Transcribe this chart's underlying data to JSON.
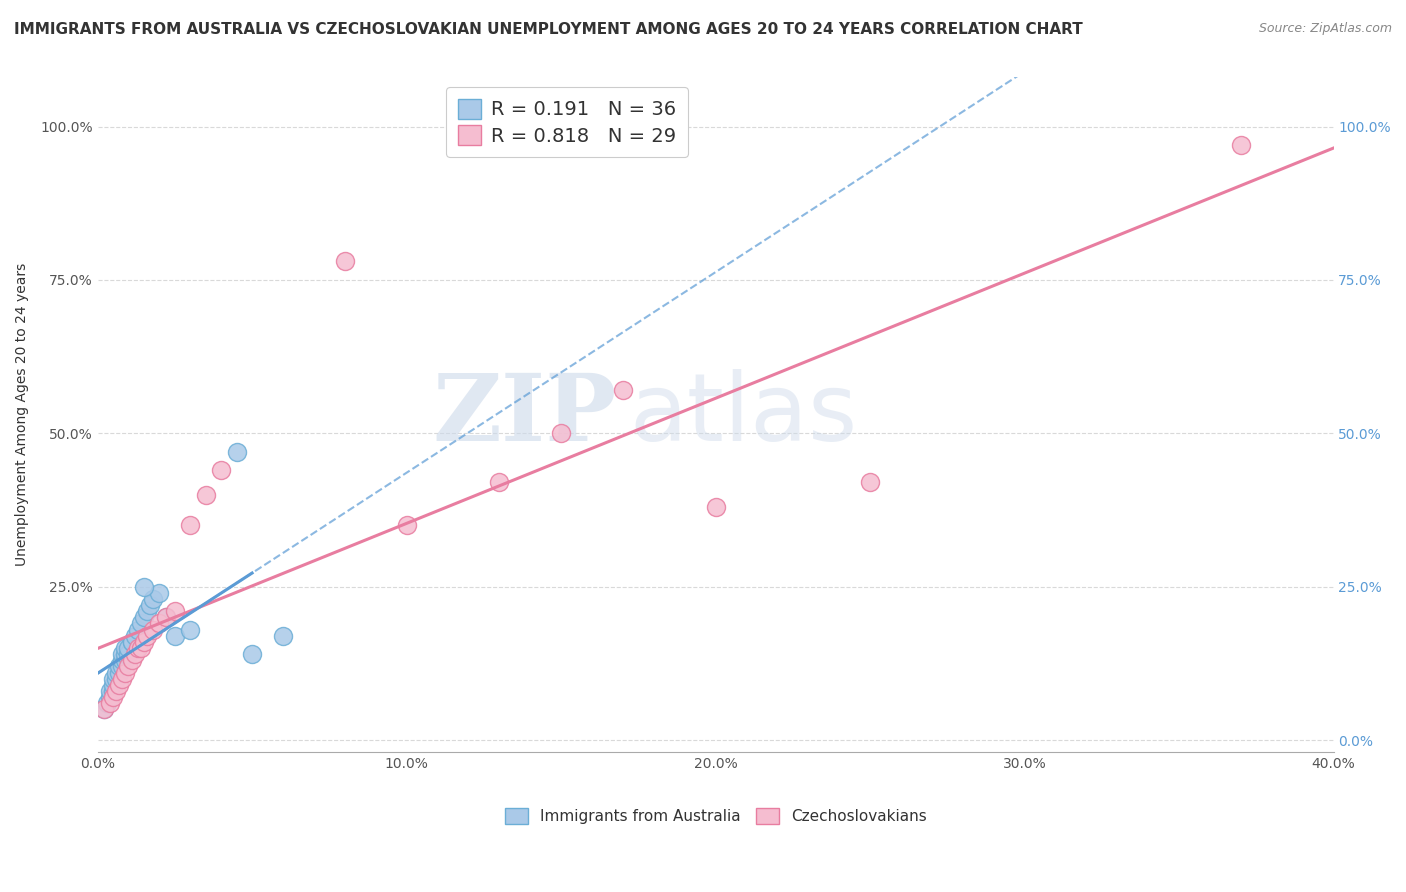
{
  "title": "IMMIGRANTS FROM AUSTRALIA VS CZECHOSLOVAKIAN UNEMPLOYMENT AMONG AGES 20 TO 24 YEARS CORRELATION CHART",
  "source": "Source: ZipAtlas.com",
  "ylabel": "Unemployment Among Ages 20 to 24 years",
  "xlim": [
    0.0,
    0.4
  ],
  "ylim": [
    -0.02,
    1.08
  ],
  "x_ticks": [
    0.0,
    0.1,
    0.2,
    0.3,
    0.4
  ],
  "x_tick_labels": [
    "0.0%",
    "10.0%",
    "20.0%",
    "30.0%",
    "40.0%"
  ],
  "y_ticks": [
    0.0,
    0.25,
    0.5,
    0.75,
    1.0
  ],
  "y_tick_labels": [
    "",
    "25.0%",
    "50.0%",
    "75.0%",
    "100.0%"
  ],
  "y_right_tick_labels": [
    "0.0%",
    "25.0%",
    "50.0%",
    "75.0%",
    "100.0%"
  ],
  "blue_color": "#aac9e8",
  "blue_edge_color": "#6baed6",
  "pink_color": "#f5bdd0",
  "pink_edge_color": "#e87da0",
  "trend_blue_color": "#5b9bd5",
  "trend_pink_color": "#e87da0",
  "R_blue": 0.191,
  "N_blue": 36,
  "R_pink": 0.818,
  "N_pink": 29,
  "legend_label_blue": "Immigrants from Australia",
  "legend_label_pink": "Czechoslovakians",
  "watermark_zip": "ZIP",
  "watermark_atlas": "atlas",
  "blue_x": [
    0.002,
    0.003,
    0.004,
    0.004,
    0.005,
    0.005,
    0.005,
    0.006,
    0.006,
    0.007,
    0.007,
    0.008,
    0.008,
    0.008,
    0.009,
    0.009,
    0.009,
    0.01,
    0.01,
    0.011,
    0.011,
    0.012,
    0.013,
    0.014,
    0.015,
    0.016,
    0.017,
    0.018,
    0.02,
    0.022,
    0.025,
    0.03,
    0.045,
    0.05,
    0.06,
    0.015
  ],
  "blue_y": [
    0.05,
    0.06,
    0.07,
    0.08,
    0.08,
    0.09,
    0.1,
    0.1,
    0.11,
    0.11,
    0.12,
    0.12,
    0.13,
    0.14,
    0.13,
    0.14,
    0.15,
    0.14,
    0.15,
    0.16,
    0.16,
    0.17,
    0.18,
    0.19,
    0.2,
    0.21,
    0.22,
    0.23,
    0.24,
    0.2,
    0.17,
    0.18,
    0.47,
    0.14,
    0.17,
    0.25
  ],
  "pink_x": [
    0.002,
    0.004,
    0.005,
    0.006,
    0.007,
    0.008,
    0.009,
    0.01,
    0.011,
    0.012,
    0.013,
    0.014,
    0.015,
    0.016,
    0.018,
    0.02,
    0.022,
    0.025,
    0.03,
    0.035,
    0.04,
    0.08,
    0.1,
    0.13,
    0.15,
    0.17,
    0.2,
    0.25,
    0.37
  ],
  "pink_y": [
    0.05,
    0.06,
    0.07,
    0.08,
    0.09,
    0.1,
    0.11,
    0.12,
    0.13,
    0.14,
    0.15,
    0.15,
    0.16,
    0.17,
    0.18,
    0.19,
    0.2,
    0.21,
    0.35,
    0.4,
    0.44,
    0.78,
    0.35,
    0.42,
    0.5,
    0.57,
    0.38,
    0.42,
    0.97
  ],
  "background_color": "#ffffff",
  "grid_color": "#d0d0d0",
  "title_fontsize": 11,
  "axis_label_fontsize": 10,
  "tick_fontsize": 10,
  "marker_size": 13,
  "blue_trend_start": 0.0,
  "blue_trend_end": 0.4,
  "pink_trend_start": 0.0,
  "pink_trend_end": 0.4
}
